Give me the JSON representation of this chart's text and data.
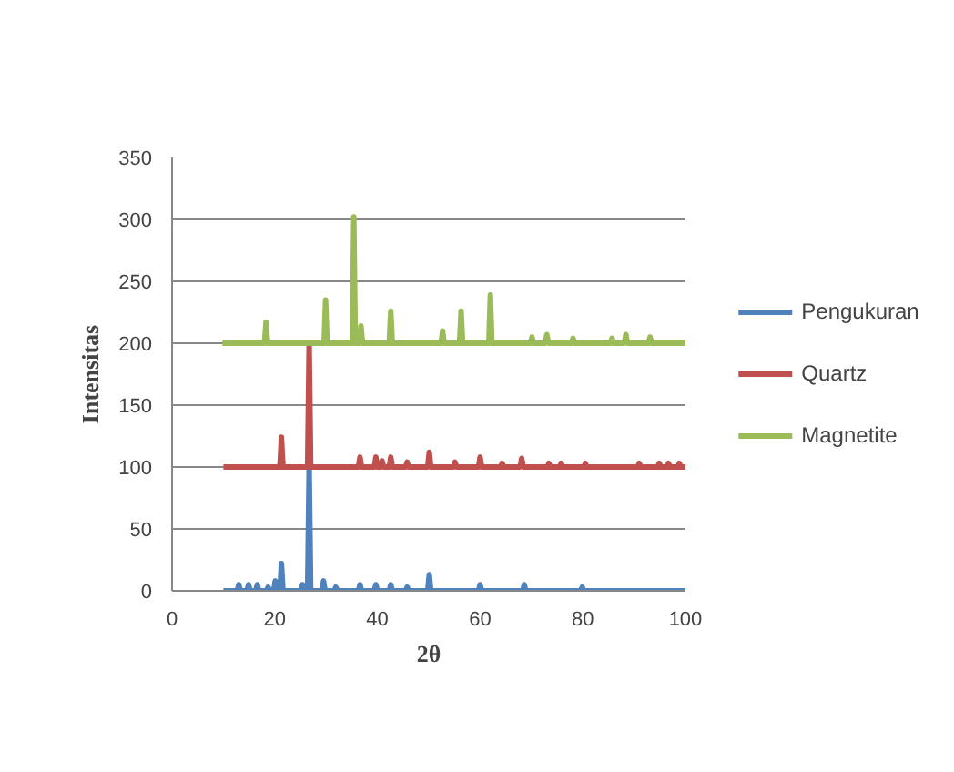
{
  "chart_data": {
    "type": "line",
    "xlabel": "2θ",
    "ylabel": "Intensitas",
    "xlim": [
      0,
      100
    ],
    "ylim": [
      0,
      350
    ],
    "xticks": [
      0,
      20,
      40,
      60,
      80,
      100
    ],
    "yticks": [
      0,
      50,
      100,
      150,
      200,
      250,
      300,
      350
    ],
    "grid": "y",
    "legend": "right",
    "marker": "none",
    "line_style": "solid",
    "series": [
      {
        "name": "Pengukuran",
        "color": "#4f81bd",
        "x": [
          10,
          12.7,
          13,
          13.3,
          14.6,
          14.9,
          15.2,
          16.3,
          16.6,
          16.9,
          18.4,
          18.7,
          19.0,
          19.8,
          20.1,
          20.4,
          21.0,
          21.3,
          21.6,
          25.1,
          25.4,
          25.7,
          26.4,
          26.7,
          27.0,
          29.2,
          29.5,
          29.8,
          31.6,
          31.9,
          32.2,
          36.3,
          36.6,
          36.9,
          39.4,
          39.7,
          40.0,
          42.3,
          42.6,
          42.9,
          45.5,
          45.8,
          46.1,
          49.8,
          50.1,
          50.4,
          59.7,
          60,
          60.3,
          68.3,
          68.6,
          68.9,
          79.6,
          79.9,
          80.2,
          100
        ],
        "values": [
          0,
          0,
          5,
          0,
          0,
          5,
          0,
          0,
          5,
          0,
          0,
          3,
          0,
          0,
          8,
          0,
          0,
          22,
          0,
          0,
          5,
          0,
          0,
          100,
          0,
          0,
          8,
          0,
          0,
          3,
          0,
          0,
          5,
          0,
          0,
          5,
          0,
          0,
          5,
          0,
          0,
          3,
          0,
          0,
          13,
          0,
          0,
          5,
          0,
          0,
          5,
          0,
          0,
          3,
          0,
          0
        ]
      },
      {
        "name": "Quartz",
        "color": "#c0504d",
        "x": [
          10,
          21.0,
          21.3,
          21.6,
          26.4,
          26.7,
          27.0,
          36.3,
          36.6,
          36.9,
          39.4,
          39.7,
          40.0,
          40.6,
          40.9,
          41.2,
          42.3,
          42.6,
          42.9,
          45.5,
          45.8,
          46.1,
          49.8,
          50.1,
          50.4,
          54.8,
          55.1,
          55.4,
          59.7,
          60,
          60.3,
          64.0,
          64.3,
          64.6,
          67.8,
          68.1,
          68.4,
          73.1,
          73.4,
          73.7,
          75.5,
          75.8,
          76.1,
          80.2,
          80.5,
          80.8,
          90.7,
          91,
          91.3,
          94.6,
          94.9,
          95.2,
          96.4,
          96.7,
          97.0,
          98.5,
          98.8,
          99.1,
          100
        ],
        "values": [
          100,
          100,
          124,
          100,
          100,
          200,
          100,
          100,
          108,
          100,
          100,
          108,
          100,
          100,
          105,
          100,
          100,
          108,
          100,
          100,
          104,
          100,
          100,
          112,
          100,
          100,
          104,
          100,
          100,
          108,
          100,
          100,
          103,
          100,
          100,
          107,
          100,
          100,
          103,
          100,
          100,
          103,
          100,
          100,
          103,
          100,
          100,
          103,
          100,
          100,
          103,
          100,
          100,
          103,
          100,
          100,
          103,
          100,
          100
        ]
      },
      {
        "name": "Magnetite",
        "color": "#9bbb59",
        "x": [
          9.8,
          18.0,
          18.3,
          18.6,
          29.6,
          29.9,
          30.2,
          35.1,
          35.4,
          35.7,
          36.5,
          36.8,
          37.1,
          42.3,
          42.6,
          42.9,
          52.4,
          52.7,
          53.0,
          56.0,
          56.3,
          56.6,
          61.7,
          62,
          62.3,
          69.8,
          70.1,
          70.4,
          72.7,
          73,
          73.3,
          77.8,
          78.1,
          78.4,
          85.4,
          85.7,
          86.0,
          88.1,
          88.4,
          88.7,
          92.8,
          93.1,
          93.4,
          100
        ],
        "values": [
          200,
          200,
          217,
          200,
          200,
          235,
          200,
          200,
          302,
          200,
          200,
          214,
          200,
          200,
          226,
          200,
          200,
          210,
          200,
          200,
          226,
          200,
          200,
          239,
          200,
          200,
          205,
          200,
          200,
          207,
          200,
          200,
          204,
          200,
          200,
          204,
          200,
          200,
          207,
          200,
          200,
          205,
          200,
          200
        ]
      }
    ]
  }
}
